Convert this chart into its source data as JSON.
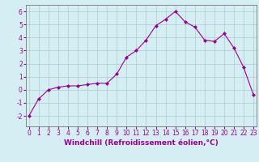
{
  "x": [
    0,
    1,
    2,
    3,
    4,
    5,
    6,
    7,
    8,
    9,
    10,
    11,
    12,
    13,
    14,
    15,
    16,
    17,
    18,
    19,
    20,
    21,
    22,
    23
  ],
  "y": [
    -2.0,
    -0.7,
    0.0,
    0.2,
    0.3,
    0.3,
    0.4,
    0.5,
    0.5,
    1.2,
    2.5,
    3.0,
    3.8,
    4.9,
    5.4,
    6.0,
    5.2,
    4.8,
    3.8,
    3.7,
    4.3,
    3.2,
    1.7,
    -0.4
  ],
  "line_color": "#990099",
  "marker": "D",
  "marker_size": 2,
  "bg_color": "#d4eef4",
  "grid_color": "#aacccc",
  "xlabel": "Windchill (Refroidissement éolien,°C)",
  "ylim": [
    -2.8,
    6.5
  ],
  "xlim": [
    -0.3,
    23.3
  ],
  "yticks": [
    -2,
    -1,
    0,
    1,
    2,
    3,
    4,
    5,
    6
  ],
  "xticks": [
    0,
    1,
    2,
    3,
    4,
    5,
    6,
    7,
    8,
    9,
    10,
    11,
    12,
    13,
    14,
    15,
    16,
    17,
    18,
    19,
    20,
    21,
    22,
    23
  ],
  "tick_fontsize": 5.5,
  "xlabel_fontsize": 6.5,
  "tick_color": "#990099",
  "label_color": "#990099",
  "spine_color": "#777777"
}
